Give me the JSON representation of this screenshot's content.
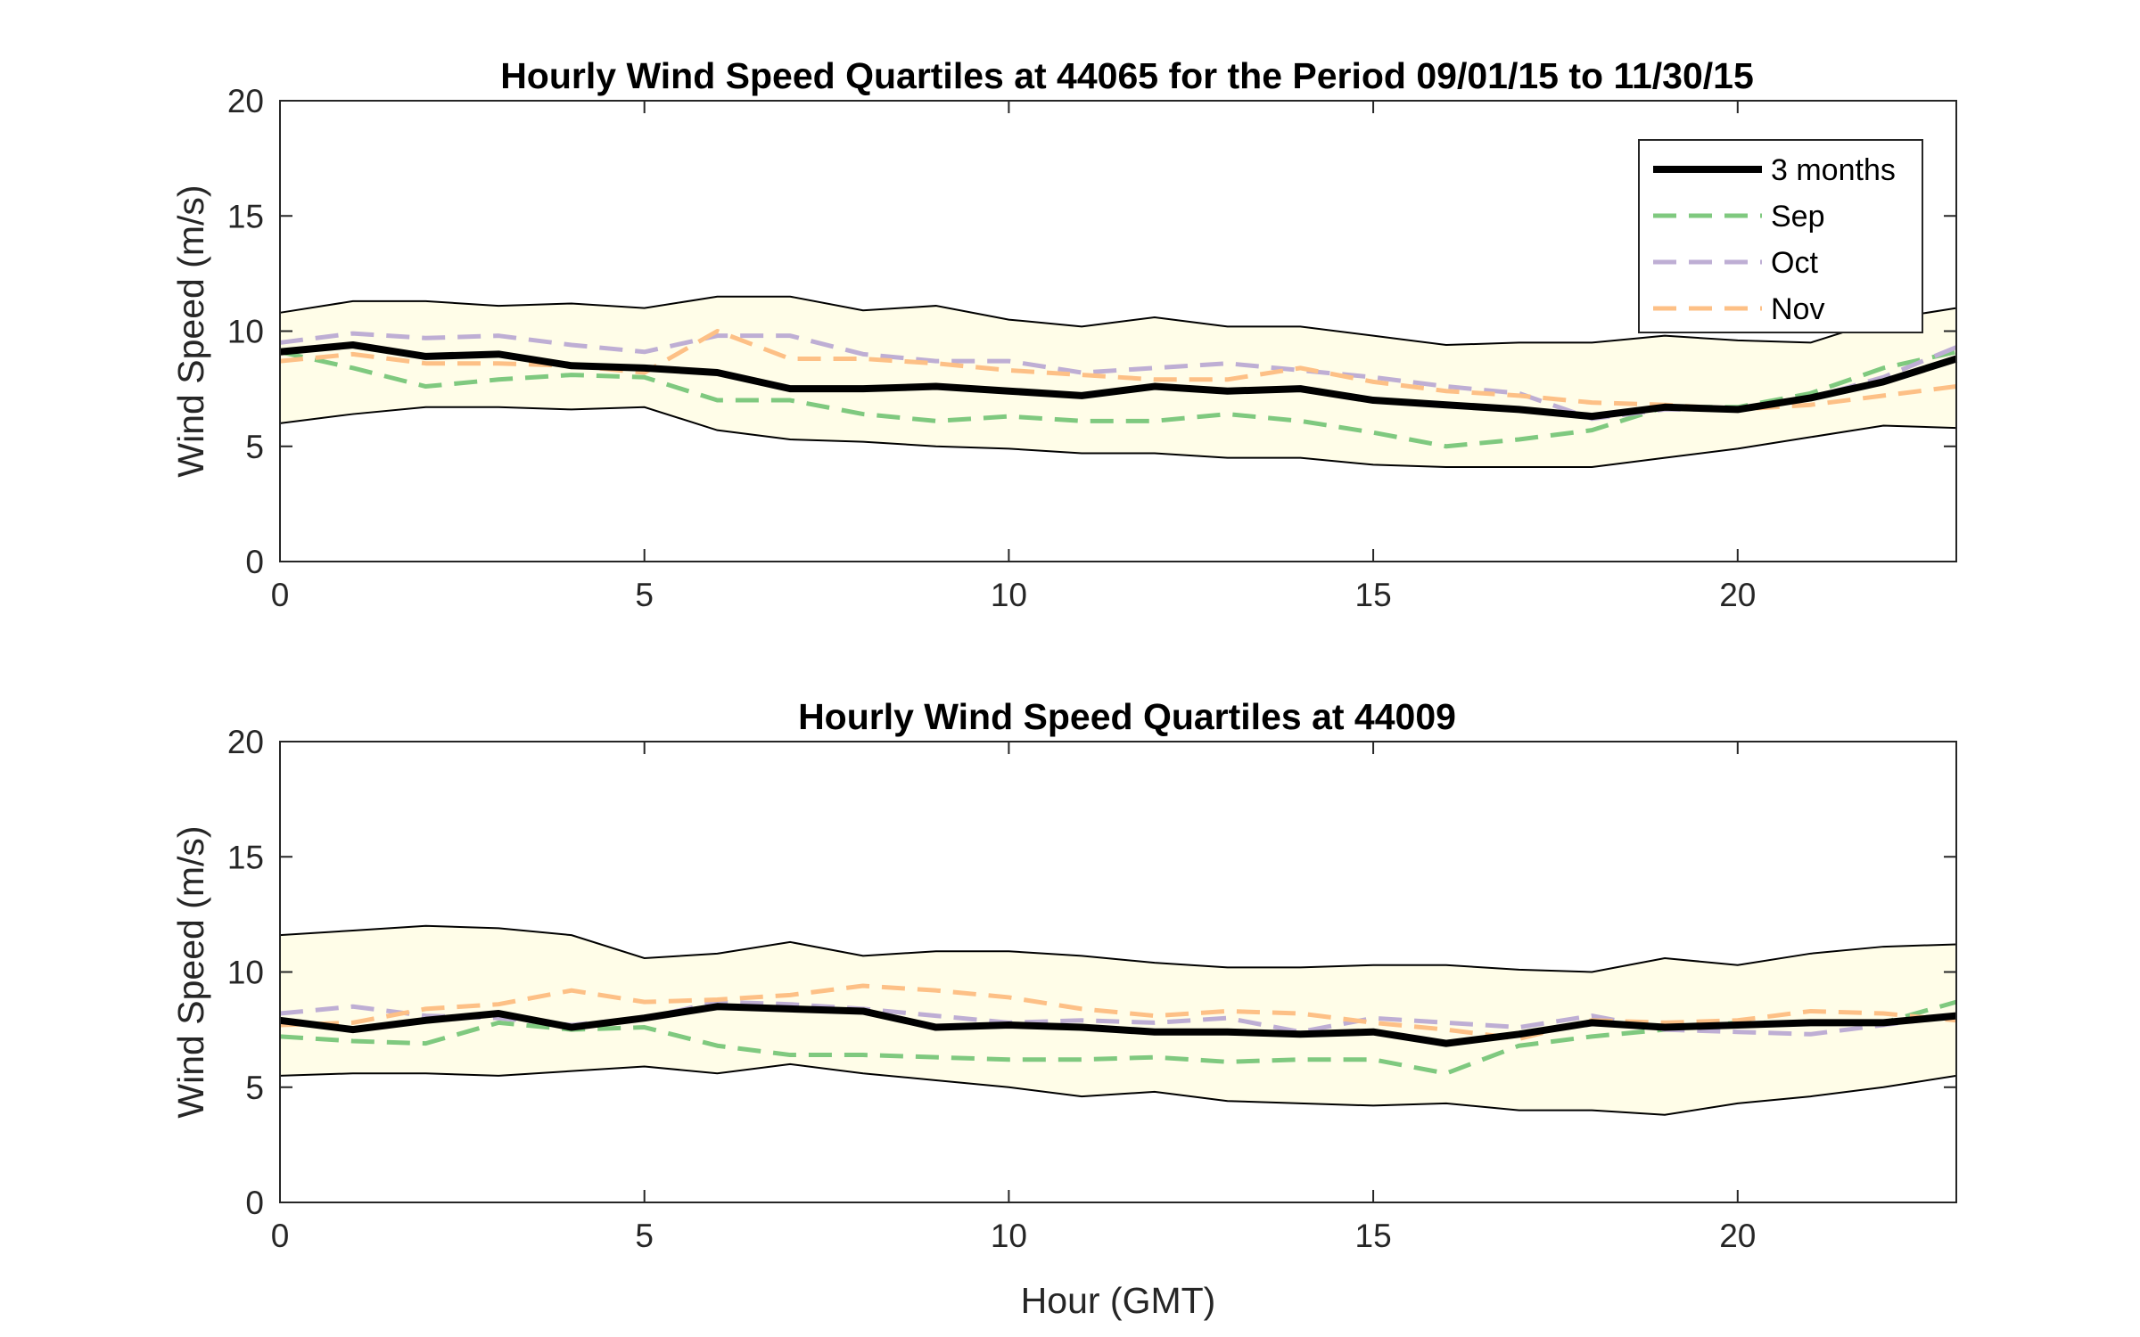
{
  "chart_data": [
    {
      "type": "line",
      "title": "Hourly Wind Speed Quartiles at 44065 for the Period 09/01/15 to 11/30/15",
      "xlabel": "",
      "ylabel": "Wind Speed (m/s)",
      "xlim": [
        0,
        23
      ],
      "ylim": [
        0,
        20
      ],
      "xticks": [
        0,
        5,
        10,
        15,
        20
      ],
      "yticks": [
        0,
        5,
        10,
        15,
        20
      ],
      "grid": false,
      "legend_position": "top-right",
      "x": [
        0,
        1,
        2,
        3,
        4,
        5,
        6,
        7,
        8,
        9,
        10,
        11,
        12,
        13,
        14,
        15,
        16,
        17,
        18,
        19,
        20,
        21,
        22,
        23
      ],
      "band": {
        "fill": "#fffde8",
        "upper": [
          10.8,
          11.3,
          11.3,
          11.1,
          11.2,
          11.0,
          11.5,
          11.5,
          10.9,
          11.1,
          10.5,
          10.2,
          10.6,
          10.2,
          10.2,
          9.8,
          9.4,
          9.5,
          9.5,
          9.8,
          9.6,
          9.5,
          10.5,
          11.0
        ],
        "lower": [
          6.0,
          6.4,
          6.7,
          6.7,
          6.6,
          6.7,
          5.7,
          5.3,
          5.2,
          5.0,
          4.9,
          4.7,
          4.7,
          4.5,
          4.5,
          4.2,
          4.1,
          4.1,
          4.1,
          4.5,
          4.9,
          5.4,
          5.9,
          5.8
        ]
      },
      "series": [
        {
          "name": "3 months",
          "color": "#000000",
          "style": "solid",
          "values": [
            9.1,
            9.4,
            8.9,
            9.0,
            8.5,
            8.4,
            8.2,
            7.5,
            7.5,
            7.6,
            7.4,
            7.2,
            7.6,
            7.4,
            7.5,
            7.0,
            6.8,
            6.6,
            6.3,
            6.7,
            6.6,
            7.1,
            7.8,
            8.8
          ]
        },
        {
          "name": "Sep",
          "color": "#7fc97f",
          "style": "dashed",
          "values": [
            9.1,
            8.4,
            7.6,
            7.9,
            8.1,
            8.0,
            7.0,
            7.0,
            6.4,
            6.1,
            6.3,
            6.1,
            6.1,
            6.4,
            6.1,
            5.6,
            5.0,
            5.3,
            5.7,
            6.7,
            6.7,
            7.3,
            8.4,
            9.1
          ]
        },
        {
          "name": "Oct",
          "color": "#beaed4",
          "style": "dashed",
          "values": [
            9.5,
            9.9,
            9.7,
            9.8,
            9.4,
            9.1,
            9.8,
            9.8,
            9.0,
            8.7,
            8.7,
            8.2,
            8.4,
            8.6,
            8.3,
            8.0,
            7.6,
            7.3,
            6.2,
            6.6,
            6.6,
            7.1,
            8.0,
            9.3
          ]
        },
        {
          "name": "Nov",
          "color": "#fdc086",
          "style": "dashed",
          "values": [
            8.7,
            9.0,
            8.6,
            8.6,
            8.5,
            8.2,
            10.0,
            8.8,
            8.8,
            8.6,
            8.3,
            8.1,
            7.9,
            7.9,
            8.4,
            7.8,
            7.4,
            7.2,
            6.9,
            6.8,
            6.6,
            6.8,
            7.2,
            7.6
          ]
        }
      ]
    },
    {
      "type": "line",
      "title": "Hourly Wind Speed Quartiles at 44009",
      "xlabel": "Hour (GMT)",
      "ylabel": "Wind Speed (m/s)",
      "xlim": [
        0,
        23
      ],
      "ylim": [
        0,
        20
      ],
      "xticks": [
        0,
        5,
        10,
        15,
        20
      ],
      "yticks": [
        0,
        5,
        10,
        15,
        20
      ],
      "grid": false,
      "x": [
        0,
        1,
        2,
        3,
        4,
        5,
        6,
        7,
        8,
        9,
        10,
        11,
        12,
        13,
        14,
        15,
        16,
        17,
        18,
        19,
        20,
        21,
        22,
        23
      ],
      "band": {
        "fill": "#fffde8",
        "upper": [
          11.6,
          11.8,
          12.0,
          11.9,
          11.6,
          10.6,
          10.8,
          11.3,
          10.7,
          10.9,
          10.9,
          10.7,
          10.4,
          10.2,
          10.2,
          10.3,
          10.3,
          10.1,
          10.0,
          10.6,
          10.3,
          10.8,
          11.1,
          11.2
        ],
        "lower": [
          5.5,
          5.6,
          5.6,
          5.5,
          5.7,
          5.9,
          5.6,
          6.0,
          5.6,
          5.3,
          5.0,
          4.6,
          4.8,
          4.4,
          4.3,
          4.2,
          4.3,
          4.0,
          4.0,
          3.8,
          4.3,
          4.6,
          5.0,
          5.5
        ]
      },
      "series": [
        {
          "name": "3 months",
          "color": "#000000",
          "style": "solid",
          "values": [
            7.9,
            7.5,
            7.9,
            8.2,
            7.6,
            8.0,
            8.5,
            8.4,
            8.3,
            7.6,
            7.7,
            7.6,
            7.4,
            7.4,
            7.3,
            7.4,
            6.9,
            7.3,
            7.8,
            7.6,
            7.7,
            7.8,
            7.8,
            8.1
          ]
        },
        {
          "name": "Sep",
          "color": "#7fc97f",
          "style": "dashed",
          "values": [
            7.2,
            7.0,
            6.9,
            7.8,
            7.5,
            7.6,
            6.8,
            6.4,
            6.4,
            6.3,
            6.2,
            6.2,
            6.3,
            6.1,
            6.2,
            6.2,
            5.6,
            6.8,
            7.2,
            7.5,
            7.8,
            7.8,
            7.8,
            8.7
          ]
        },
        {
          "name": "Oct",
          "color": "#beaed4",
          "style": "dashed",
          "values": [
            8.2,
            8.5,
            8.1,
            8.0,
            7.7,
            8.0,
            8.7,
            8.6,
            8.4,
            8.1,
            7.8,
            7.9,
            7.8,
            8.0,
            7.4,
            8.0,
            7.8,
            7.6,
            8.1,
            7.5,
            7.4,
            7.3,
            7.7,
            8.1
          ]
        },
        {
          "name": "Nov",
          "color": "#fdc086",
          "style": "dashed",
          "values": [
            7.7,
            7.8,
            8.4,
            8.6,
            9.2,
            8.7,
            8.8,
            9.0,
            9.4,
            9.2,
            8.9,
            8.4,
            8.1,
            8.3,
            8.2,
            7.8,
            7.5,
            7.1,
            7.9,
            7.8,
            7.9,
            8.3,
            8.2,
            7.9
          ]
        }
      ]
    }
  ]
}
